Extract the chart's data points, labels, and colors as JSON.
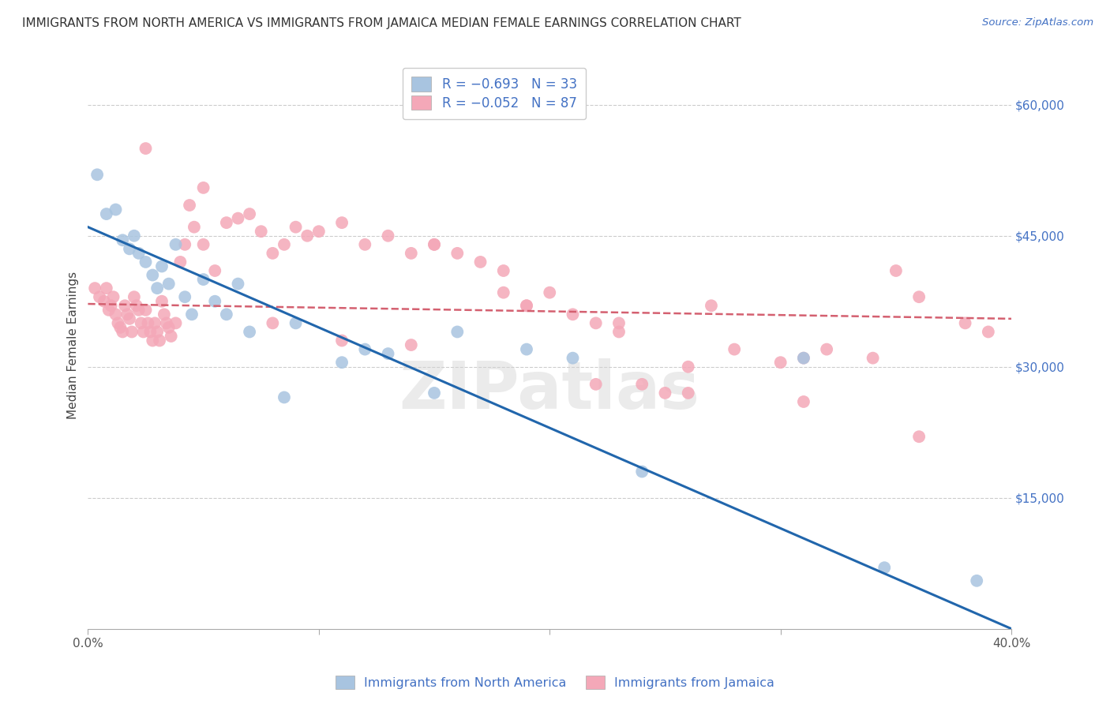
{
  "title": "IMMIGRANTS FROM NORTH AMERICA VS IMMIGRANTS FROM JAMAICA MEDIAN FEMALE EARNINGS CORRELATION CHART",
  "source": "Source: ZipAtlas.com",
  "ylabel": "Median Female Earnings",
  "xlim": [
    0.0,
    0.4
  ],
  "ylim": [
    0,
    65000
  ],
  "blue_R": -0.693,
  "blue_N": 33,
  "pink_R": -0.052,
  "pink_N": 87,
  "blue_color": "#a8c4e0",
  "pink_color": "#f4a8b8",
  "blue_line_color": "#2166ac",
  "pink_line_color": "#d46070",
  "watermark": "ZIPatlas",
  "blue_line_x0": 0.0,
  "blue_line_y0": 46000,
  "blue_line_x1": 0.4,
  "blue_line_y1": 0,
  "pink_line_x0": 0.0,
  "pink_line_y0": 37200,
  "pink_line_x1": 0.4,
  "pink_line_y1": 35500,
  "blue_scatter_x": [
    0.004,
    0.008,
    0.012,
    0.015,
    0.018,
    0.02,
    0.022,
    0.025,
    0.028,
    0.03,
    0.032,
    0.035,
    0.038,
    0.042,
    0.045,
    0.05,
    0.055,
    0.06,
    0.065,
    0.07,
    0.085,
    0.09,
    0.11,
    0.12,
    0.13,
    0.15,
    0.16,
    0.19,
    0.21,
    0.24,
    0.31,
    0.345,
    0.385
  ],
  "blue_scatter_y": [
    52000,
    47500,
    48000,
    44500,
    43500,
    45000,
    43000,
    42000,
    40500,
    39000,
    41500,
    39500,
    44000,
    38000,
    36000,
    40000,
    37500,
    36000,
    39500,
    34000,
    26500,
    35000,
    30500,
    32000,
    31500,
    27000,
    34000,
    32000,
    31000,
    18000,
    31000,
    7000,
    5500
  ],
  "pink_scatter_x": [
    0.003,
    0.005,
    0.007,
    0.008,
    0.009,
    0.01,
    0.011,
    0.012,
    0.013,
    0.014,
    0.015,
    0.016,
    0.017,
    0.018,
    0.019,
    0.02,
    0.021,
    0.022,
    0.023,
    0.024,
    0.025,
    0.026,
    0.027,
    0.028,
    0.029,
    0.03,
    0.031,
    0.032,
    0.033,
    0.034,
    0.035,
    0.036,
    0.038,
    0.04,
    0.042,
    0.044,
    0.046,
    0.05,
    0.055,
    0.06,
    0.065,
    0.07,
    0.075,
    0.08,
    0.085,
    0.09,
    0.095,
    0.1,
    0.11,
    0.12,
    0.13,
    0.14,
    0.15,
    0.16,
    0.17,
    0.18,
    0.19,
    0.2,
    0.21,
    0.22,
    0.23,
    0.24,
    0.25,
    0.26,
    0.28,
    0.3,
    0.32,
    0.34,
    0.36,
    0.38,
    0.39,
    0.025,
    0.05,
    0.08,
    0.11,
    0.14,
    0.18,
    0.22,
    0.26,
    0.31,
    0.36,
    0.15,
    0.19,
    0.23,
    0.27,
    0.31,
    0.35
  ],
  "pink_scatter_y": [
    39000,
    38000,
    37500,
    39000,
    36500,
    37000,
    38000,
    36000,
    35000,
    34500,
    34000,
    37000,
    36000,
    35500,
    34000,
    38000,
    37000,
    36500,
    35000,
    34000,
    36500,
    35000,
    34000,
    33000,
    35000,
    34000,
    33000,
    37500,
    36000,
    35000,
    34500,
    33500,
    35000,
    42000,
    44000,
    48500,
    46000,
    44000,
    41000,
    46500,
    47000,
    47500,
    45500,
    43000,
    44000,
    46000,
    45000,
    45500,
    46500,
    44000,
    45000,
    43000,
    44000,
    43000,
    42000,
    41000,
    37000,
    38500,
    36000,
    35000,
    34000,
    28000,
    27000,
    30000,
    32000,
    30500,
    32000,
    31000,
    38000,
    35000,
    34000,
    55000,
    50500,
    35000,
    33000,
    32500,
    38500,
    28000,
    27000,
    31000,
    22000,
    44000,
    37000,
    35000,
    37000,
    26000,
    41000
  ]
}
